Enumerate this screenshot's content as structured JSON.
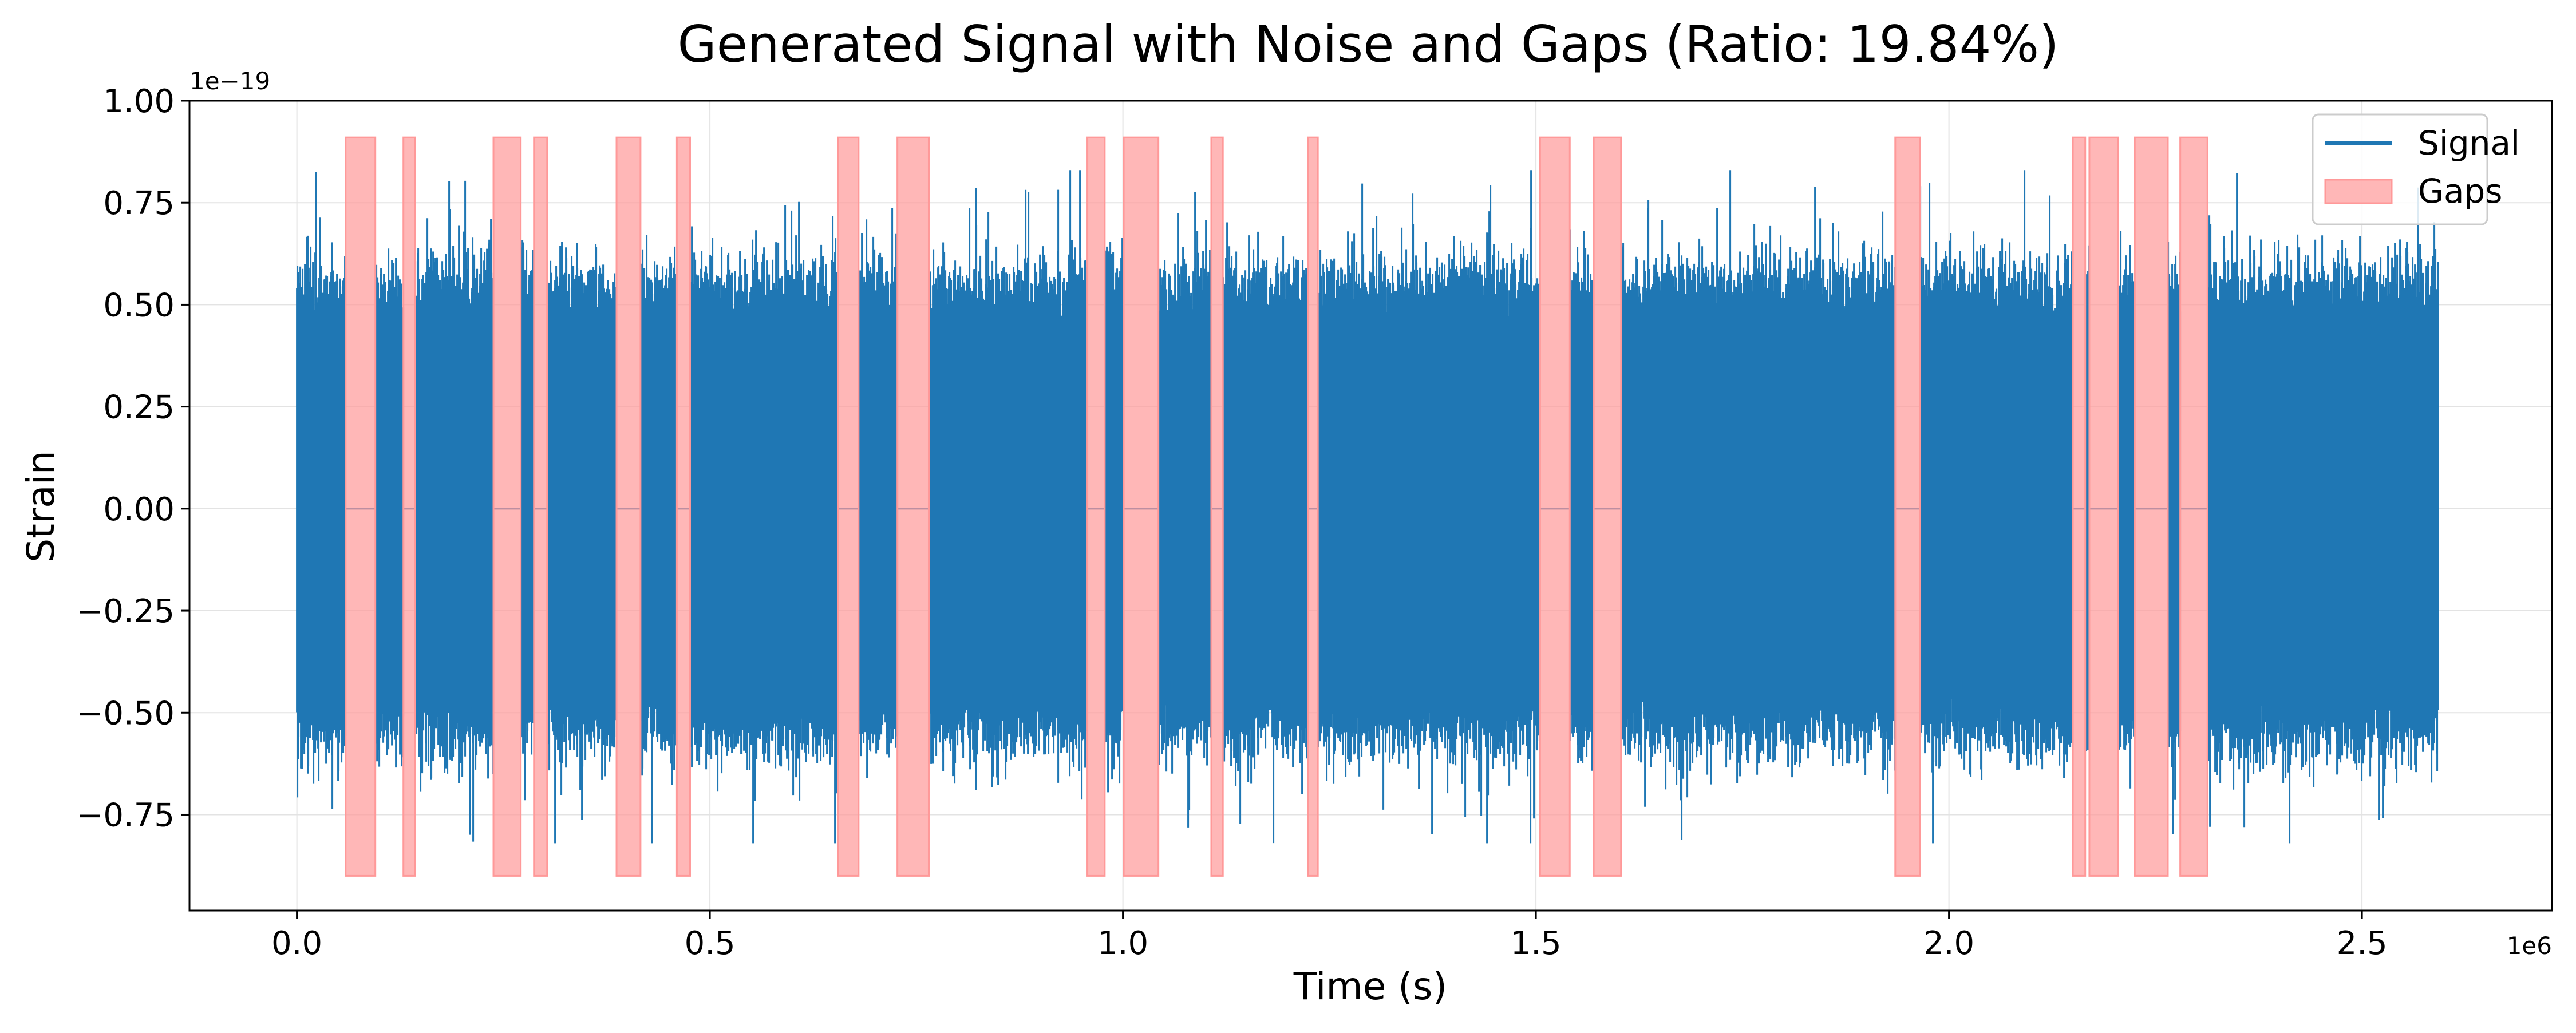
{
  "chart_data": {
    "type": "line",
    "title": "Generated Signal with Noise and Gaps (Ratio: 19.84%)",
    "xlabel": "Time (s)",
    "ylabel": "Strain",
    "x_offset_label": "1e6",
    "y_offset_label": "1e−19",
    "xlim": [
      -0.13,
      2.73
    ],
    "ylim": [
      -0.985,
      1.0
    ],
    "x_ticks": [
      {
        "value": 0.0,
        "label": "0.0"
      },
      {
        "value": 0.5,
        "label": "0.5"
      },
      {
        "value": 1.0,
        "label": "1.0"
      },
      {
        "value": 1.5,
        "label": "1.5"
      },
      {
        "value": 2.0,
        "label": "2.0"
      },
      {
        "value": 2.5,
        "label": "2.5"
      }
    ],
    "y_ticks": [
      {
        "value": 1.0,
        "label": "1.00"
      },
      {
        "value": 0.75,
        "label": "0.75"
      },
      {
        "value": 0.5,
        "label": "0.50"
      },
      {
        "value": 0.25,
        "label": "0.25"
      },
      {
        "value": 0.0,
        "label": "0.00"
      },
      {
        "value": -0.25,
        "label": "−0.25"
      },
      {
        "value": -0.5,
        "label": "−0.50"
      },
      {
        "value": -0.75,
        "label": "−0.75"
      }
    ],
    "grid": true,
    "legend_position": "top-right",
    "series": [
      {
        "name": "Signal",
        "color": "#1f77b4",
        "x_range": [
          0.0,
          2.592
        ],
        "typical_amplitude_range": [
          -0.55,
          0.55
        ],
        "peak_range": [
          -0.82,
          0.83
        ],
        "value_in_gaps": 0.0
      }
    ],
    "gaps": {
      "name": "Gaps",
      "color": "#ff9999",
      "y_range": [
        -0.9,
        0.91
      ],
      "intervals": [
        [
          0.059,
          0.095
        ],
        [
          0.129,
          0.143
        ],
        [
          0.238,
          0.271
        ],
        [
          0.287,
          0.303
        ],
        [
          0.387,
          0.416
        ],
        [
          0.46,
          0.476
        ],
        [
          0.655,
          0.68
        ],
        [
          0.727,
          0.765
        ],
        [
          0.957,
          0.978
        ],
        [
          1.001,
          1.043
        ],
        [
          1.107,
          1.121
        ],
        [
          1.224,
          1.236
        ],
        [
          1.505,
          1.541
        ],
        [
          1.57,
          1.603
        ],
        [
          1.935,
          1.965
        ],
        [
          2.15,
          2.165
        ],
        [
          2.17,
          2.205
        ],
        [
          2.225,
          2.265
        ],
        [
          2.28,
          2.313
        ]
      ]
    },
    "legend": [
      {
        "label": "Signal",
        "kind": "line",
        "color": "#1f77b4"
      },
      {
        "label": "Gaps",
        "kind": "patch",
        "color": "#ff9999"
      }
    ]
  }
}
